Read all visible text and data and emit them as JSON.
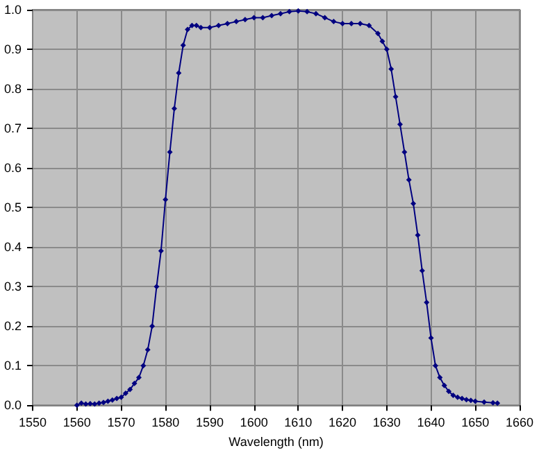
{
  "chart_data": {
    "type": "line",
    "xlabel": "Wavelength (nm)",
    "xlim": [
      1550,
      1660
    ],
    "xticks": [
      1550,
      1560,
      1570,
      1580,
      1590,
      1600,
      1610,
      1620,
      1630,
      1640,
      1650,
      1660
    ],
    "ylim": [
      0,
      1
    ],
    "yticks": [
      {
        "value": 0,
        "label": "0.0"
      },
      0.1,
      0.2,
      0.3,
      0.4,
      0.5,
      0.6,
      0.7,
      0.8,
      0.9,
      {
        "value": 1,
        "label": "1.0"
      }
    ],
    "grid": true,
    "marker": "diamond",
    "line_style": "solid",
    "series": [
      {
        "color": "#000080",
        "x": [
          1560,
          1561,
          1562,
          1563,
          1564,
          1565,
          1566,
          1567,
          1568,
          1569,
          1570,
          1571,
          1572,
          1573,
          1574,
          1575,
          1576,
          1577,
          1578,
          1579,
          1580,
          1581,
          1582,
          1583,
          1584,
          1585,
          1586,
          1587,
          1588,
          1590,
          1592,
          1594,
          1596,
          1598,
          1600,
          1602,
          1604,
          1606,
          1608,
          1610,
          1612,
          1614,
          1616,
          1618,
          1620,
          1622,
          1624,
          1626,
          1628,
          1629,
          1630,
          1631,
          1632,
          1633,
          1634,
          1635,
          1636,
          1637,
          1638,
          1639,
          1640,
          1641,
          1642,
          1643,
          1644,
          1645,
          1646,
          1647,
          1648,
          1649,
          1650,
          1652,
          1654,
          1655
        ],
        "values": [
          0.0,
          0.005,
          0.003,
          0.004,
          0.003,
          0.005,
          0.007,
          0.01,
          0.013,
          0.017,
          0.02,
          0.03,
          0.04,
          0.055,
          0.07,
          0.1,
          0.14,
          0.2,
          0.3,
          0.39,
          0.52,
          0.64,
          0.75,
          0.84,
          0.91,
          0.95,
          0.96,
          0.96,
          0.955,
          0.955,
          0.96,
          0.965,
          0.97,
          0.975,
          0.98,
          0.98,
          0.985,
          0.99,
          0.995,
          0.997,
          0.995,
          0.99,
          0.98,
          0.97,
          0.965,
          0.965,
          0.965,
          0.96,
          0.94,
          0.92,
          0.9,
          0.85,
          0.78,
          0.71,
          0.64,
          0.57,
          0.51,
          0.43,
          0.34,
          0.26,
          0.17,
          0.1,
          0.07,
          0.05,
          0.035,
          0.025,
          0.02,
          0.017,
          0.014,
          0.012,
          0.01,
          0.008,
          0.006,
          0.005
        ]
      }
    ]
  }
}
